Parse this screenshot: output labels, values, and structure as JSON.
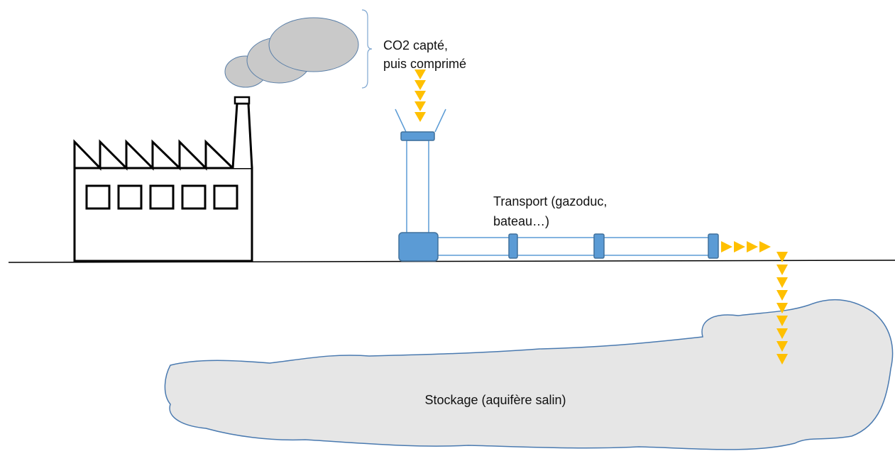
{
  "labels": {
    "capture": {
      "lines": [
        "CO2 capté,",
        "puis comprimé"
      ]
    },
    "transport": {
      "lines": [
        "Transport (gazoduc,",
        "bateau…)"
      ]
    },
    "storage": {
      "text": "Stockage (aquifère salin)"
    }
  }
}
